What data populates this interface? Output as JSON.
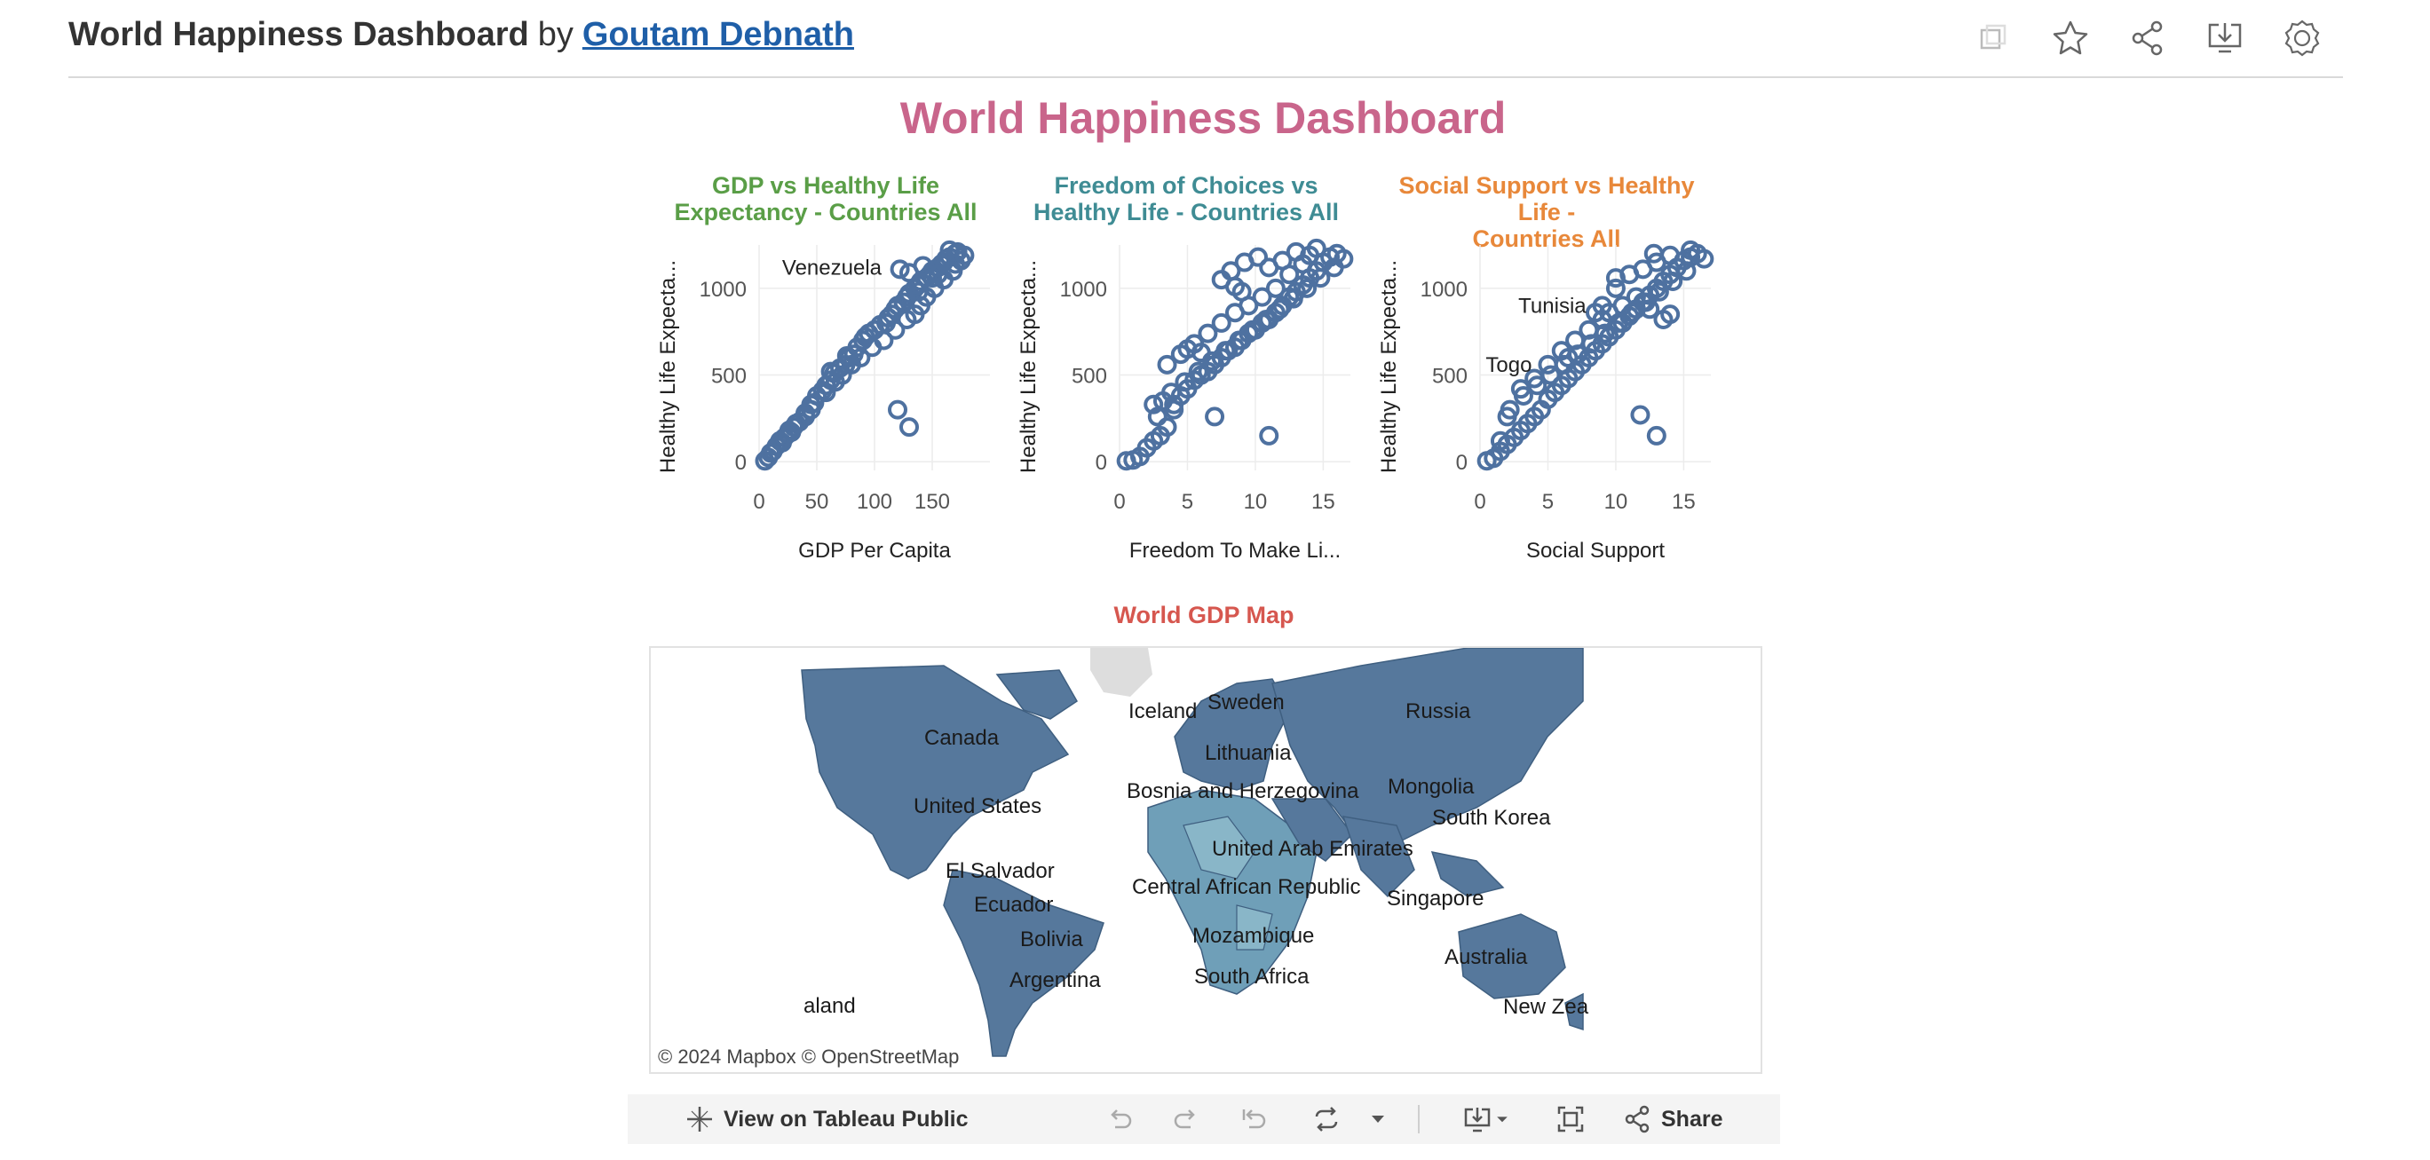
{
  "header": {
    "title": "World Happiness Dashboard",
    "by_label": "by",
    "author": "Goutam Debnath",
    "icons": [
      "copy-icon",
      "star-icon",
      "share-icon",
      "download-icon",
      "badge-icon"
    ]
  },
  "dashboard": {
    "title": "World Happiness Dashboard",
    "title_color": "#c9658b"
  },
  "chart_data": [
    {
      "type": "scatter",
      "title": "GDP vs Healthy Life Expectancy - Countries All",
      "title_lines": [
        "GDP vs Healthy Life",
        "Expectancy - Countries All"
      ],
      "title_color": "#5a9e47",
      "xlabel": "GDP Per Capita",
      "ylabel": "Healthy Life Expecta...",
      "xlim": [
        0,
        200
      ],
      "ylim": [
        -50,
        1250
      ],
      "xticks": [
        0,
        50,
        100,
        150
      ],
      "yticks": [
        0,
        500,
        1000
      ],
      "annotations": [
        {
          "text": "Venezuela",
          "x": 120,
          "y": 1120
        }
      ],
      "points": [
        [
          5,
          5
        ],
        [
          8,
          25
        ],
        [
          12,
          60
        ],
        [
          15,
          90
        ],
        [
          20,
          110
        ],
        [
          22,
          140
        ],
        [
          25,
          160
        ],
        [
          30,
          200
        ],
        [
          35,
          230
        ],
        [
          40,
          280
        ],
        [
          45,
          330
        ],
        [
          50,
          380
        ],
        [
          55,
          410
        ],
        [
          58,
          440
        ],
        [
          62,
          470
        ],
        [
          65,
          510
        ],
        [
          70,
          540
        ],
        [
          75,
          560
        ],
        [
          78,
          600
        ],
        [
          82,
          620
        ],
        [
          85,
          660
        ],
        [
          90,
          700
        ],
        [
          95,
          740
        ],
        [
          100,
          760
        ],
        [
          105,
          790
        ],
        [
          110,
          800
        ],
        [
          115,
          850
        ],
        [
          118,
          880
        ],
        [
          120,
          900
        ],
        [
          125,
          920
        ],
        [
          128,
          950
        ],
        [
          130,
          970
        ],
        [
          135,
          1000
        ],
        [
          138,
          1020
        ],
        [
          140,
          1040
        ],
        [
          145,
          1060
        ],
        [
          148,
          1080
        ],
        [
          150,
          1100
        ],
        [
          155,
          1120
        ],
        [
          158,
          1140
        ],
        [
          160,
          1150
        ],
        [
          162,
          1170
        ],
        [
          165,
          1180
        ],
        [
          170,
          1200
        ],
        [
          172,
          1210
        ],
        [
          175,
          1160
        ],
        [
          168,
          1100
        ],
        [
          160,
          1050
        ],
        [
          152,
          1000
        ],
        [
          145,
          950
        ],
        [
          140,
          900
        ],
        [
          135,
          850
        ],
        [
          128,
          820
        ],
        [
          118,
          760
        ],
        [
          108,
          700
        ],
        [
          98,
          660
        ],
        [
          88,
          600
        ],
        [
          80,
          560
        ],
        [
          72,
          500
        ],
        [
          66,
          460
        ],
        [
          58,
          400
        ],
        [
          48,
          340
        ],
        [
          40,
          260
        ],
        [
          32,
          220
        ],
        [
          26,
          180
        ],
        [
          18,
          120
        ],
        [
          10,
          50
        ],
        [
          122,
          1110
        ],
        [
          120,
          300
        ],
        [
          130,
          200
        ],
        [
          130,
          1090
        ],
        [
          142,
          1130
        ],
        [
          150,
          1060
        ],
        [
          165,
          1220
        ],
        [
          178,
          1190
        ],
        [
          170,
          1140
        ],
        [
          155,
          1080
        ],
        [
          138,
          980
        ],
        [
          112,
          830
        ],
        [
          92,
          720
        ],
        [
          76,
          610
        ],
        [
          62,
          520
        ],
        [
          45,
          300
        ],
        [
          28,
          170
        ]
      ]
    },
    {
      "type": "scatter",
      "title": "Freedom of Choices vs Healthy Life - Countries All",
      "title_lines": [
        "Freedom of Choices vs",
        "Healthy Life - Countries All"
      ],
      "title_color": "#3f8c94",
      "xlabel": "Freedom To Make Li...",
      "ylabel": "Healthy Life Expecta...",
      "xlim": [
        0,
        17
      ],
      "ylim": [
        -50,
        1250
      ],
      "xticks": [
        0,
        5,
        10,
        15
      ],
      "yticks": [
        0,
        500,
        1000
      ],
      "points": [
        [
          0.5,
          5
        ],
        [
          1,
          10
        ],
        [
          1.5,
          30
        ],
        [
          2,
          80
        ],
        [
          2.5,
          120
        ],
        [
          3,
          150
        ],
        [
          3.5,
          200
        ],
        [
          2.8,
          260
        ],
        [
          4,
          300
        ],
        [
          3.2,
          350
        ],
        [
          4.5,
          380
        ],
        [
          5,
          420
        ],
        [
          5.5,
          470
        ],
        [
          6,
          500
        ],
        [
          6.5,
          520
        ],
        [
          7,
          560
        ],
        [
          7.5,
          600
        ],
        [
          8,
          640
        ],
        [
          8.5,
          660
        ],
        [
          9,
          700
        ],
        [
          9.5,
          740
        ],
        [
          10,
          760
        ],
        [
          10.5,
          800
        ],
        [
          11,
          820
        ],
        [
          11.5,
          860
        ],
        [
          12,
          900
        ],
        [
          12.5,
          950
        ],
        [
          13,
          980
        ],
        [
          13.5,
          1020
        ],
        [
          14,
          1060
        ],
        [
          14.5,
          1100
        ],
        [
          15,
          1150
        ],
        [
          15.5,
          1180
        ],
        [
          16,
          1200
        ],
        [
          16.5,
          1170
        ],
        [
          15.8,
          1120
        ],
        [
          14.8,
          1060
        ],
        [
          13.8,
          1000
        ],
        [
          12.8,
          940
        ],
        [
          11.8,
          880
        ],
        [
          10.8,
          820
        ],
        [
          9.8,
          760
        ],
        [
          8.8,
          700
        ],
        [
          7.8,
          640
        ],
        [
          6.8,
          580
        ],
        [
          5.8,
          520
        ],
        [
          4.8,
          460
        ],
        [
          3.8,
          400
        ],
        [
          2.5,
          330
        ],
        [
          8.2,
          1100
        ],
        [
          8.5,
          1010
        ],
        [
          7.5,
          1050
        ],
        [
          9.2,
          1150
        ],
        [
          10.2,
          1180
        ],
        [
          11,
          1120
        ],
        [
          12,
          1160
        ],
        [
          13,
          1210
        ],
        [
          14,
          1190
        ],
        [
          11.5,
          1000
        ],
        [
          10.5,
          950
        ],
        [
          9.5,
          900
        ],
        [
          8.5,
          860
        ],
        [
          7.5,
          800
        ],
        [
          6.5,
          740
        ],
        [
          5.5,
          680
        ],
        [
          4.5,
          620
        ],
        [
          3.5,
          560
        ],
        [
          7,
          260
        ],
        [
          11,
          150
        ],
        [
          6,
          630
        ],
        [
          4,
          330
        ],
        [
          5,
          650
        ],
        [
          9,
          980
        ],
        [
          12.5,
          1080
        ],
        [
          14.5,
          1230
        ],
        [
          13.5,
          1140
        ]
      ]
    },
    {
      "type": "scatter",
      "title": "Social Support vs Healthy Life - Countries All",
      "title_lines": [
        "Social Support vs Healthy Life -",
        "Countries All"
      ],
      "title_color": "#e8883a",
      "xlabel": "Social Support",
      "ylabel": "Healthy Life Expecta...",
      "xlim": [
        0,
        17
      ],
      "ylim": [
        -50,
        1250
      ],
      "xticks": [
        0,
        5,
        10,
        15
      ],
      "yticks": [
        0,
        500,
        1000
      ],
      "annotations": [
        {
          "text": "Tunisia",
          "x": 9,
          "y": 900
        },
        {
          "text": "Togo",
          "x": 5,
          "y": 560
        }
      ],
      "points": [
        [
          0.5,
          5
        ],
        [
          1,
          20
        ],
        [
          1.5,
          60
        ],
        [
          2,
          100
        ],
        [
          2.5,
          140
        ],
        [
          3,
          180
        ],
        [
          3.5,
          220
        ],
        [
          4,
          260
        ],
        [
          4.5,
          300
        ],
        [
          5,
          360
        ],
        [
          5.5,
          400
        ],
        [
          6,
          440
        ],
        [
          6.5,
          480
        ],
        [
          7,
          520
        ],
        [
          7.5,
          560
        ],
        [
          8,
          600
        ],
        [
          8.5,
          640
        ],
        [
          9,
          680
        ],
        [
          9.5,
          720
        ],
        [
          10,
          760
        ],
        [
          10.5,
          800
        ],
        [
          11,
          840
        ],
        [
          11.5,
          880
        ],
        [
          12,
          920
        ],
        [
          12.5,
          960
        ],
        [
          13,
          1000
        ],
        [
          13.5,
          1040
        ],
        [
          14,
          1080
        ],
        [
          14.5,
          1120
        ],
        [
          15,
          1160
        ],
        [
          15.5,
          1180
        ],
        [
          16,
          1200
        ],
        [
          16.5,
          1170
        ],
        [
          15.2,
          1100
        ],
        [
          14.2,
          1040
        ],
        [
          13.2,
          980
        ],
        [
          12.2,
          920
        ],
        [
          11.2,
          860
        ],
        [
          10.2,
          800
        ],
        [
          9.2,
          740
        ],
        [
          8.2,
          680
        ],
        [
          7.2,
          620
        ],
        [
          6.2,
          560
        ],
        [
          5.2,
          500
        ],
        [
          4.2,
          440
        ],
        [
          3.2,
          380
        ],
        [
          2.2,
          300
        ],
        [
          9,
          900
        ],
        [
          9.5,
          860
        ],
        [
          10,
          1000
        ],
        [
          11,
          1080
        ],
        [
          12,
          1110
        ],
        [
          13,
          1150
        ],
        [
          14,
          1190
        ],
        [
          15.5,
          1220
        ],
        [
          11.5,
          950
        ],
        [
          12.5,
          880
        ],
        [
          13.5,
          820
        ],
        [
          14,
          850
        ],
        [
          10.5,
          900
        ],
        [
          9,
          820
        ],
        [
          8,
          760
        ],
        [
          7,
          700
        ],
        [
          6,
          640
        ],
        [
          5,
          560
        ],
        [
          4,
          480
        ],
        [
          3,
          420
        ],
        [
          2,
          260
        ],
        [
          1.5,
          120
        ],
        [
          11.8,
          270
        ],
        [
          13,
          150
        ],
        [
          6.5,
          600
        ],
        [
          8.5,
          860
        ],
        [
          10,
          1060
        ],
        [
          12.8,
          1200
        ]
      ]
    }
  ],
  "map": {
    "title": "World GDP Map",
    "title_color": "#d6574f",
    "attribution": "© 2024 Mapbox  © OpenStreetMap",
    "labels": [
      "Iceland",
      "Sweden",
      "Russia",
      "Canada",
      "Lithuania",
      "Mongolia",
      "Bosnia and Herzegovina",
      "South Korea",
      "United States",
      "United Arab Emirates",
      "El Salvador",
      "Central African Republic",
      "Singapore",
      "Ecuador",
      "Mozambique",
      "Bolivia",
      "Australia",
      "Argentina",
      "South Africa",
      "aland",
      "New Zea"
    ],
    "colors": {
      "land": "#56789c",
      "light": "#89b6c8",
      "mid": "#6f9fb8",
      "ice": "#dddddd"
    }
  },
  "toolbar": {
    "view_label": "View on Tableau Public",
    "share_label": "Share",
    "icons": [
      "undo-icon",
      "redo-icon",
      "revert-icon",
      "refresh-icon",
      "pause-icon",
      "download-icon",
      "fullscreen-icon",
      "share-icon"
    ]
  }
}
